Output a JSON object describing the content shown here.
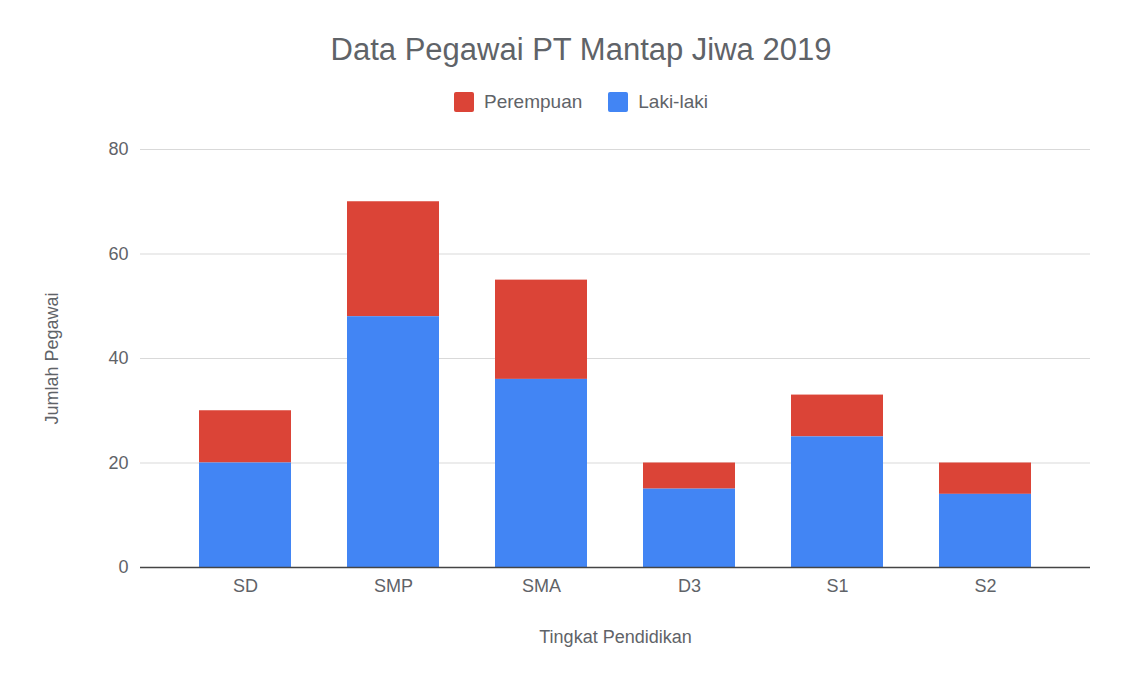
{
  "chart_data": {
    "type": "bar",
    "title": "Data Pegawai PT Mantap Jiwa 2019",
    "x_label": "Tingkat Pendidikan",
    "y_label": "Jumlah Pegawai",
    "categories": [
      "SD",
      "SMP",
      "SMA",
      "D3",
      "S1",
      "S2"
    ],
    "series": [
      {
        "name": "Perempuan",
        "color": "#db4437",
        "values": [
          10,
          22,
          19,
          5,
          8,
          6
        ]
      },
      {
        "name": "Laki-laki",
        "color": "#4285f4",
        "values": [
          20,
          48,
          36,
          15,
          25,
          14
        ]
      }
    ],
    "stacked": true,
    "legend": "top",
    "ylim": [
      0,
      80
    ],
    "yticks": [
      0,
      20,
      40,
      60,
      80
    ],
    "grid": true
  }
}
